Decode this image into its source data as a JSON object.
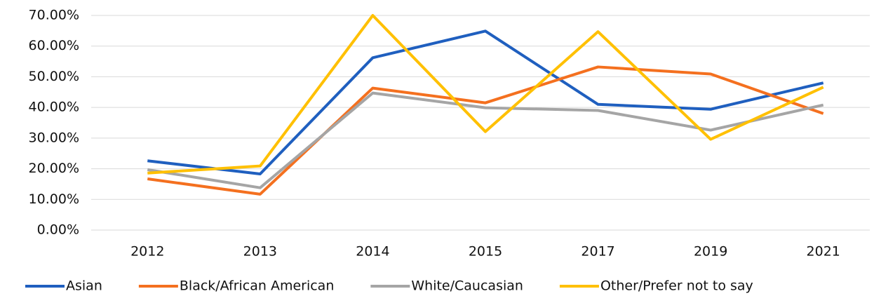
{
  "chart_data": {
    "type": "line",
    "categories": [
      "2012",
      "2013",
      "2014",
      "2015",
      "2017",
      "2019",
      "2021"
    ],
    "series": [
      {
        "name": "Asian",
        "color": "#1f5fbf",
        "values": [
          22.6,
          18.3,
          56.2,
          64.9,
          41.0,
          39.4,
          48.0
        ]
      },
      {
        "name": "Black/African American",
        "color": "#f4701f",
        "values": [
          16.7,
          11.7,
          46.3,
          41.5,
          53.2,
          50.9,
          38.0
        ]
      },
      {
        "name": "White/Caucasian",
        "color": "#a5a5a5",
        "values": [
          19.7,
          13.8,
          44.7,
          39.9,
          39.0,
          32.6,
          40.8
        ]
      },
      {
        "name": "Other/Prefer not to say",
        "color": "#ffc000",
        "values": [
          18.6,
          20.9,
          70.0,
          32.1,
          64.7,
          29.6,
          46.6
        ]
      }
    ],
    "ylim": [
      0,
      70
    ],
    "yticks": [
      {
        "value": 0,
        "label": "0.00%"
      },
      {
        "value": 10,
        "label": "10.00%"
      },
      {
        "value": 20,
        "label": "20.00%"
      },
      {
        "value": 30,
        "label": "30.00%"
      },
      {
        "value": 40,
        "label": "40.00%"
      },
      {
        "value": 50,
        "label": "50.00%"
      },
      {
        "value": 60,
        "label": "60.00%"
      },
      {
        "value": 70,
        "label": "70.00%"
      }
    ],
    "grid": true,
    "legend": "bottom"
  }
}
